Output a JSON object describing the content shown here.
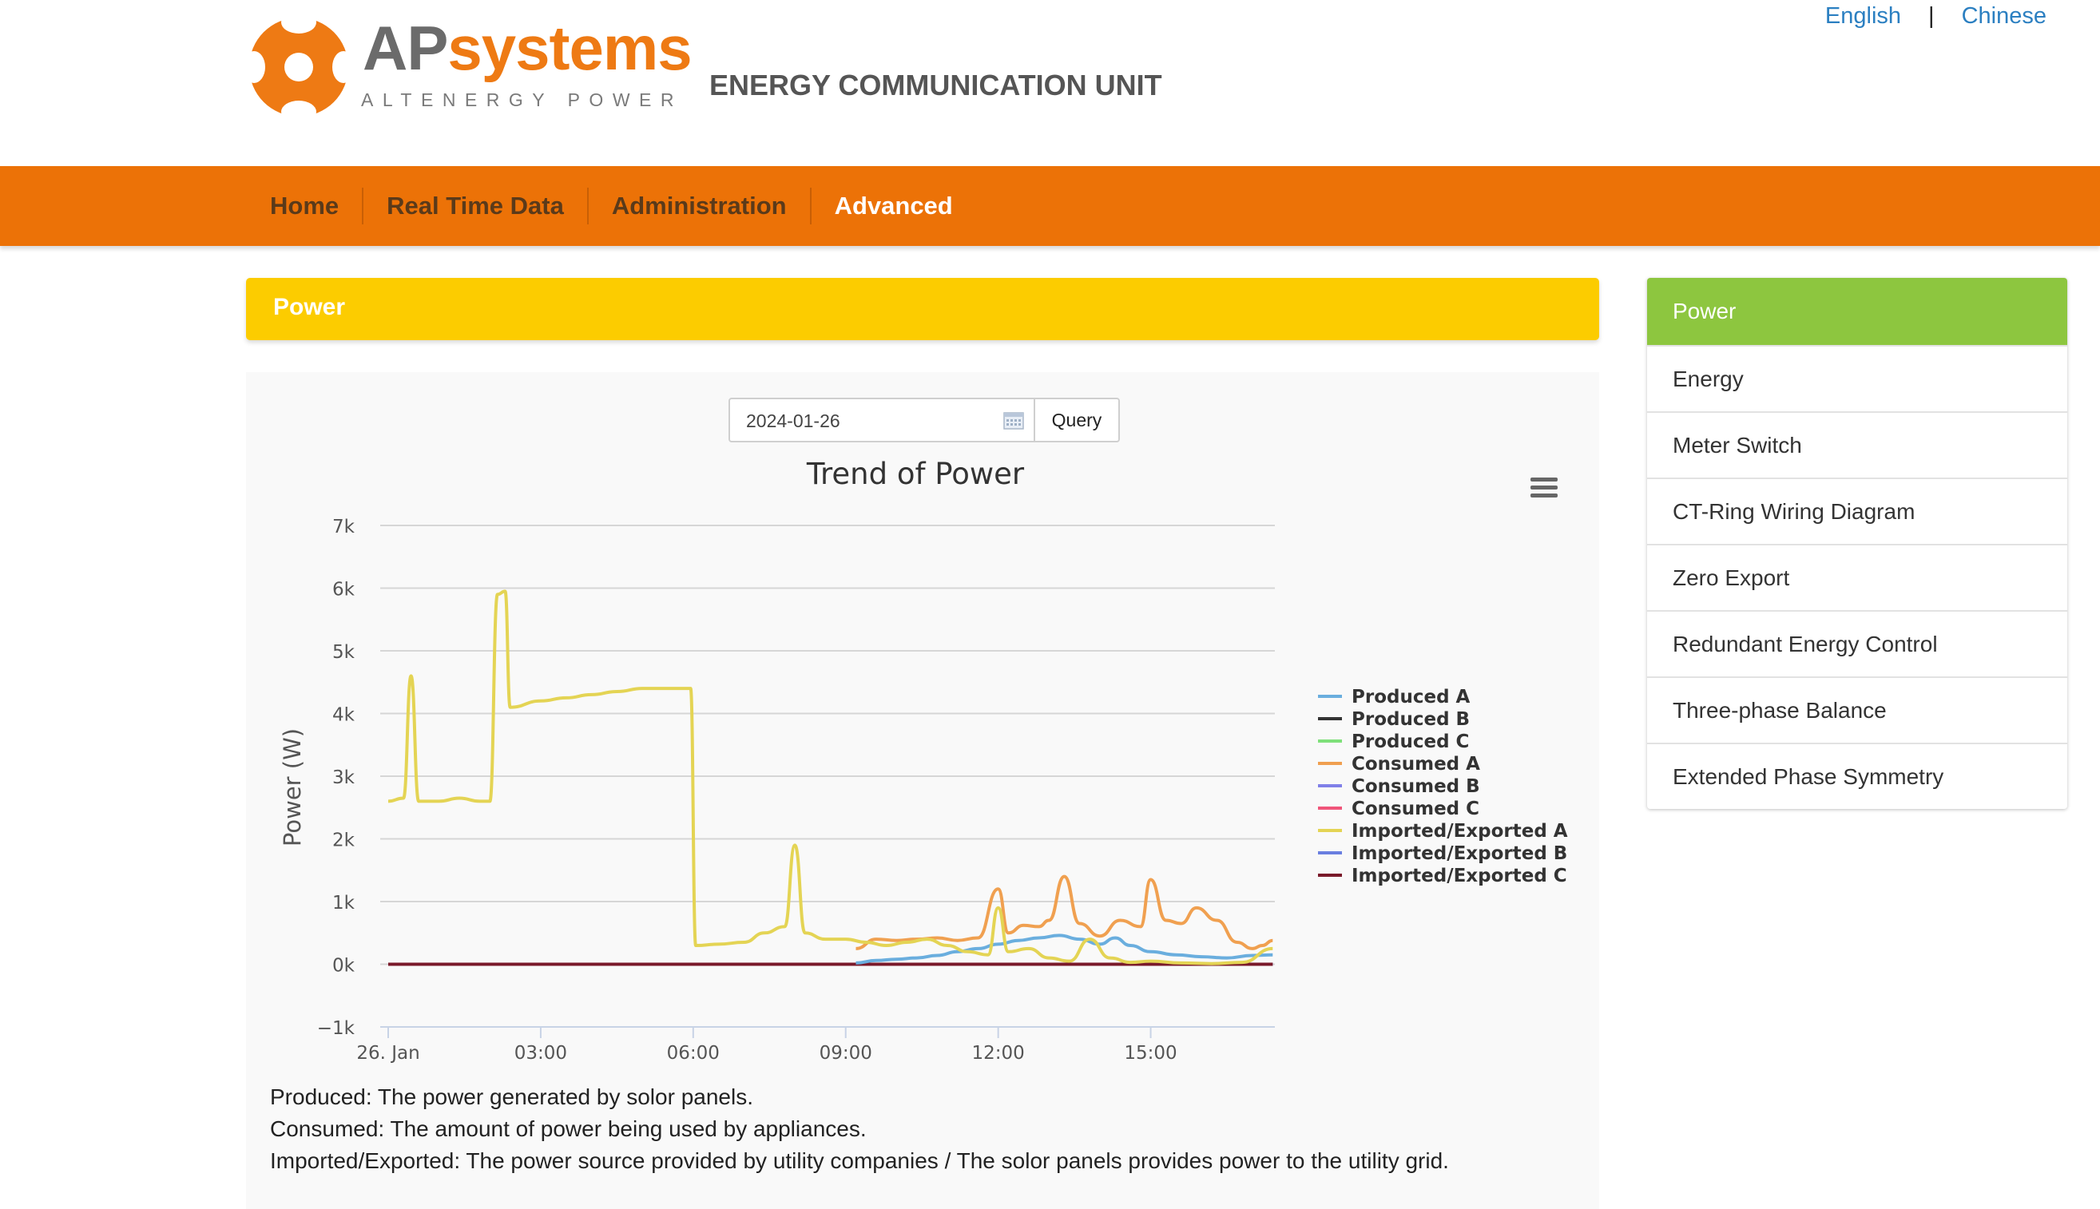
{
  "brand": {
    "name_part1": "AP",
    "name_part2": "systems",
    "tagline": "ALTENERGY POWER",
    "orange": "#ee7a14"
  },
  "header": {
    "title": "ENERGY COMMUNICATION UNIT"
  },
  "lang": {
    "english": "English",
    "separator": "|",
    "chinese": "Chinese"
  },
  "nav": {
    "items": [
      {
        "label": "Home"
      },
      {
        "label": "Real Time Data"
      },
      {
        "label": "Administration"
      },
      {
        "label": "Advanced"
      }
    ],
    "active": "Advanced",
    "color": "#ec7207"
  },
  "section": {
    "title": "Power",
    "color": "#fccc00"
  },
  "query": {
    "date": "2024-01-26",
    "button": "Query"
  },
  "menu_icon": "hamburger-menu-icon",
  "sidebar": {
    "items": [
      {
        "label": "Power"
      },
      {
        "label": "Energy"
      },
      {
        "label": "Meter Switch"
      },
      {
        "label": "CT-Ring Wiring Diagram"
      },
      {
        "label": "Zero Export"
      },
      {
        "label": "Redundant Energy Control"
      },
      {
        "label": "Three-phase Balance"
      },
      {
        "label": "Extended Phase Symmetry"
      }
    ],
    "active": "Power",
    "active_color": "#8dc63f"
  },
  "notes": [
    "Produced: The power generated by solor panels.",
    "Consumed: The amount of power being used by appliances.",
    "Imported/Exported: The power source provided by utility companies / The solor panels provides power to the utility grid."
  ],
  "chart_data": {
    "type": "line",
    "title": "Trend of Power",
    "ylabel": "Power (W)",
    "xlabel": "",
    "x_ticks": [
      "26. Jan",
      "03:00",
      "06:00",
      "09:00",
      "12:00",
      "15:00"
    ],
    "xlim": [
      0,
      17.6
    ],
    "y_ticks": [
      "−1k",
      "0k",
      "1k",
      "2k",
      "3k",
      "4k",
      "5k",
      "6k",
      "7k"
    ],
    "ylim": [
      -1000,
      7000
    ],
    "grid": true,
    "legend_position": "right",
    "series": [
      {
        "name": "Produced A",
        "color": "#6aaede",
        "points": [
          [
            9.2,
            20
          ],
          [
            9.6,
            60
          ],
          [
            10.0,
            80
          ],
          [
            10.4,
            100
          ],
          [
            10.8,
            140
          ],
          [
            11.2,
            200
          ],
          [
            11.6,
            250
          ],
          [
            12.0,
            320
          ],
          [
            12.4,
            380
          ],
          [
            12.8,
            420
          ],
          [
            13.2,
            460
          ],
          [
            13.6,
            400
          ],
          [
            14.0,
            320
          ],
          [
            14.3,
            420
          ],
          [
            14.6,
            300
          ],
          [
            15.0,
            200
          ],
          [
            15.5,
            150
          ],
          [
            16.0,
            120
          ],
          [
            16.5,
            100
          ],
          [
            17.0,
            140
          ],
          [
            17.4,
            150
          ]
        ]
      },
      {
        "name": "Produced B",
        "color": "#333333",
        "points": [
          [
            0.0,
            0
          ],
          [
            17.4,
            0
          ]
        ]
      },
      {
        "name": "Produced C",
        "color": "#7fe07a",
        "points": [
          [
            0.0,
            0
          ],
          [
            17.4,
            0
          ]
        ]
      },
      {
        "name": "Consumed A",
        "color": "#f0a050",
        "points": [
          [
            9.2,
            250
          ],
          [
            9.6,
            400
          ],
          [
            10.0,
            380
          ],
          [
            10.4,
            400
          ],
          [
            10.8,
            420
          ],
          [
            11.2,
            380
          ],
          [
            11.6,
            420
          ],
          [
            12.0,
            1200
          ],
          [
            12.2,
            500
          ],
          [
            12.5,
            620
          ],
          [
            12.8,
            600
          ],
          [
            13.0,
            700
          ],
          [
            13.3,
            1400
          ],
          [
            13.6,
            650
          ],
          [
            14.0,
            450
          ],
          [
            14.4,
            700
          ],
          [
            14.8,
            600
          ],
          [
            15.0,
            1350
          ],
          [
            15.3,
            700
          ],
          [
            15.6,
            650
          ],
          [
            15.9,
            900
          ],
          [
            16.3,
            700
          ],
          [
            16.7,
            350
          ],
          [
            17.0,
            250
          ],
          [
            17.2,
            300
          ],
          [
            17.4,
            380
          ]
        ]
      },
      {
        "name": "Consumed B",
        "color": "#8080e8",
        "points": [
          [
            0.0,
            0
          ],
          [
            17.4,
            0
          ]
        ]
      },
      {
        "name": "Consumed C",
        "color": "#f0557a",
        "points": [
          [
            0.0,
            0
          ],
          [
            17.4,
            0
          ]
        ]
      },
      {
        "name": "Imported/Exported A",
        "color": "#e4d454",
        "points": [
          [
            0.0,
            2600
          ],
          [
            0.3,
            2650
          ],
          [
            0.45,
            4600
          ],
          [
            0.6,
            2600
          ],
          [
            1.0,
            2600
          ],
          [
            1.4,
            2650
          ],
          [
            1.8,
            2600
          ],
          [
            2.0,
            2600
          ],
          [
            2.15,
            5900
          ],
          [
            2.3,
            5950
          ],
          [
            2.4,
            4100
          ],
          [
            3.0,
            4200
          ],
          [
            3.5,
            4250
          ],
          [
            4.0,
            4300
          ],
          [
            4.5,
            4350
          ],
          [
            5.0,
            4400
          ],
          [
            5.5,
            4400
          ],
          [
            5.95,
            4400
          ],
          [
            6.05,
            300
          ],
          [
            6.5,
            320
          ],
          [
            7.0,
            350
          ],
          [
            7.4,
            500
          ],
          [
            7.8,
            600
          ],
          [
            8.0,
            1900
          ],
          [
            8.2,
            500
          ],
          [
            8.6,
            400
          ],
          [
            9.0,
            400
          ],
          [
            9.4,
            350
          ],
          [
            9.8,
            300
          ],
          [
            10.2,
            350
          ],
          [
            10.6,
            400
          ],
          [
            11.0,
            300
          ],
          [
            11.4,
            200
          ],
          [
            11.8,
            150
          ],
          [
            12.0,
            900
          ],
          [
            12.2,
            200
          ],
          [
            12.6,
            250
          ],
          [
            13.0,
            100
          ],
          [
            13.4,
            50
          ],
          [
            13.8,
            400
          ],
          [
            14.2,
            100
          ],
          [
            14.6,
            30
          ],
          [
            15.0,
            50
          ],
          [
            15.6,
            20
          ],
          [
            16.2,
            10
          ],
          [
            16.8,
            30
          ],
          [
            17.4,
            250
          ]
        ]
      },
      {
        "name": "Imported/Exported B",
        "color": "#6a7fe0",
        "points": [
          [
            0.0,
            0
          ],
          [
            17.4,
            0
          ]
        ]
      },
      {
        "name": "Imported/Exported C",
        "color": "#7a1a2a",
        "points": [
          [
            0.0,
            0
          ],
          [
            17.4,
            0
          ]
        ]
      }
    ]
  }
}
